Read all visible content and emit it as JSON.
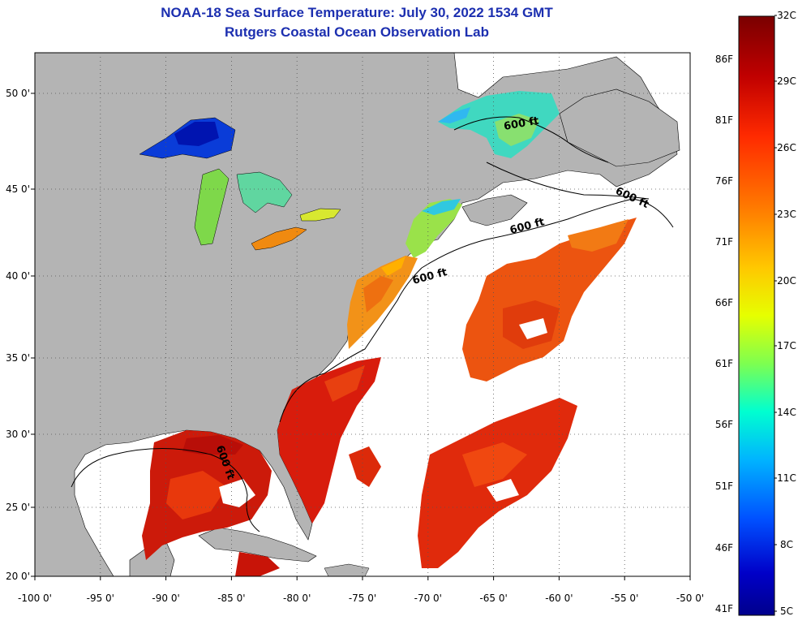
{
  "title": {
    "line1": "NOAA-18 Sea Surface Temperature:  July 30, 2022 1534 GMT",
    "line2": "Rutgers Coastal Ocean Observation Lab"
  },
  "map": {
    "lat_ticks": [
      "50 0'",
      "45 0'",
      "40 0'",
      "35 0'",
      "30 0'",
      "25 0'",
      "20 0'"
    ],
    "lon_ticks": [
      "-100 0'",
      "-95 0'",
      "-90 0'",
      "-85 0'",
      "-80 0'",
      "-75 0'",
      "-70 0'",
      "-65 0'",
      "-60 0'",
      "-55 0'",
      "-50 0'"
    ],
    "contour_labels": [
      "600 ft",
      "600 ft",
      "600 ft",
      "600 ft",
      "600 ft"
    ],
    "colors": {
      "land": "#b4b4b4",
      "water_nodata": "#ffffff",
      "frame": "#000000"
    }
  },
  "colorbar": {
    "fahrenheit_labels": [
      "86F",
      "81F",
      "76F",
      "71F",
      "66F",
      "61F",
      "56F",
      "51F",
      "46F",
      "41F"
    ],
    "celsius_labels": [
      "32C",
      "29C",
      "26C",
      "23C",
      "20C",
      "17C",
      "14C",
      "11C",
      "8C",
      "5C"
    ],
    "gradient_stops": [
      "#7a0000",
      "#c00000",
      "#ff2a00",
      "#ff7a00",
      "#ffc800",
      "#e6ff00",
      "#7dff50",
      "#00ffd0",
      "#00b4ff",
      "#0050ff",
      "#0000c8",
      "#00008c"
    ]
  }
}
